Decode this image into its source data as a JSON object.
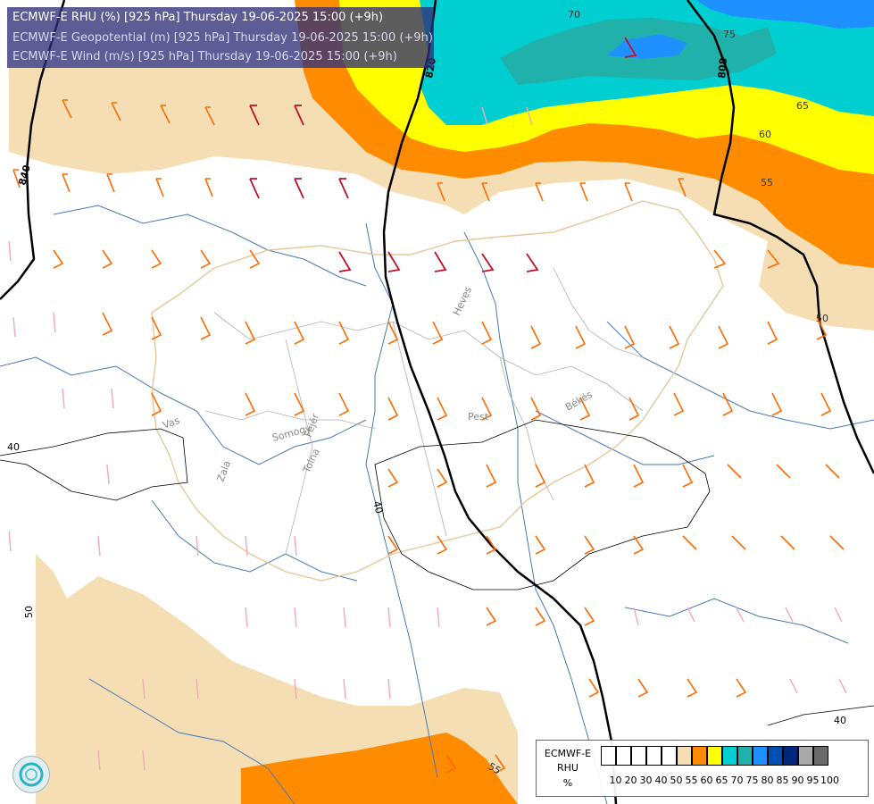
{
  "header": {
    "line1": "ECMWF-E RHU (%) [925 hPa] Thursday 19-06-2025 15:00 (+9h)",
    "line2": "ECMWF-E Geopotential (m) [925 hPa] Thursday 19-06-2025 15:00 (+9h)",
    "line3": "ECMWF-E Wind (m/s) [925 hPa] Thursday 19-06-2025 15:00 (+9h)"
  },
  "legend": {
    "title_lines": [
      "ECMWF-E",
      "RHU",
      "%"
    ],
    "colors": [
      "#ffffff",
      "#ffffff",
      "#ffffff",
      "#ffffff",
      "#ffffff",
      "#f5deb3",
      "#ff8c00",
      "#ffff00",
      "#00ced1",
      "#20b2aa",
      "#1e90ff",
      "#0050b4",
      "#00287a",
      "#a9a9a9",
      "#696969"
    ],
    "labels": [
      "10",
      "20",
      "30",
      "40",
      "50",
      "55",
      "60",
      "65",
      "70",
      "75",
      "80",
      "85",
      "90",
      "95",
      "100"
    ]
  },
  "geopotential_labels": [
    "840",
    "820",
    "808",
    "40",
    "40",
    "40",
    "50",
    "40"
  ],
  "rhu_labels": [
    "70",
    "75",
    "65",
    "60",
    "55",
    "50",
    "55",
    "40"
  ],
  "places": [
    "Heves",
    "Pest",
    "Békés",
    "Vas",
    "Zala",
    "Somogy",
    "Fejér",
    "Tolna"
  ],
  "colors": {
    "rhu_55": "#f5deb3",
    "rhu_60": "#ff8c00",
    "rhu_65": "#ffff00",
    "rhu_70": "#00ced1",
    "rhu_75": "#20b2aa",
    "rhu_80": "#1e90ff",
    "geopotential_line": "#000000",
    "border_line": "#e6c898",
    "river_line": "#4a78b4"
  }
}
